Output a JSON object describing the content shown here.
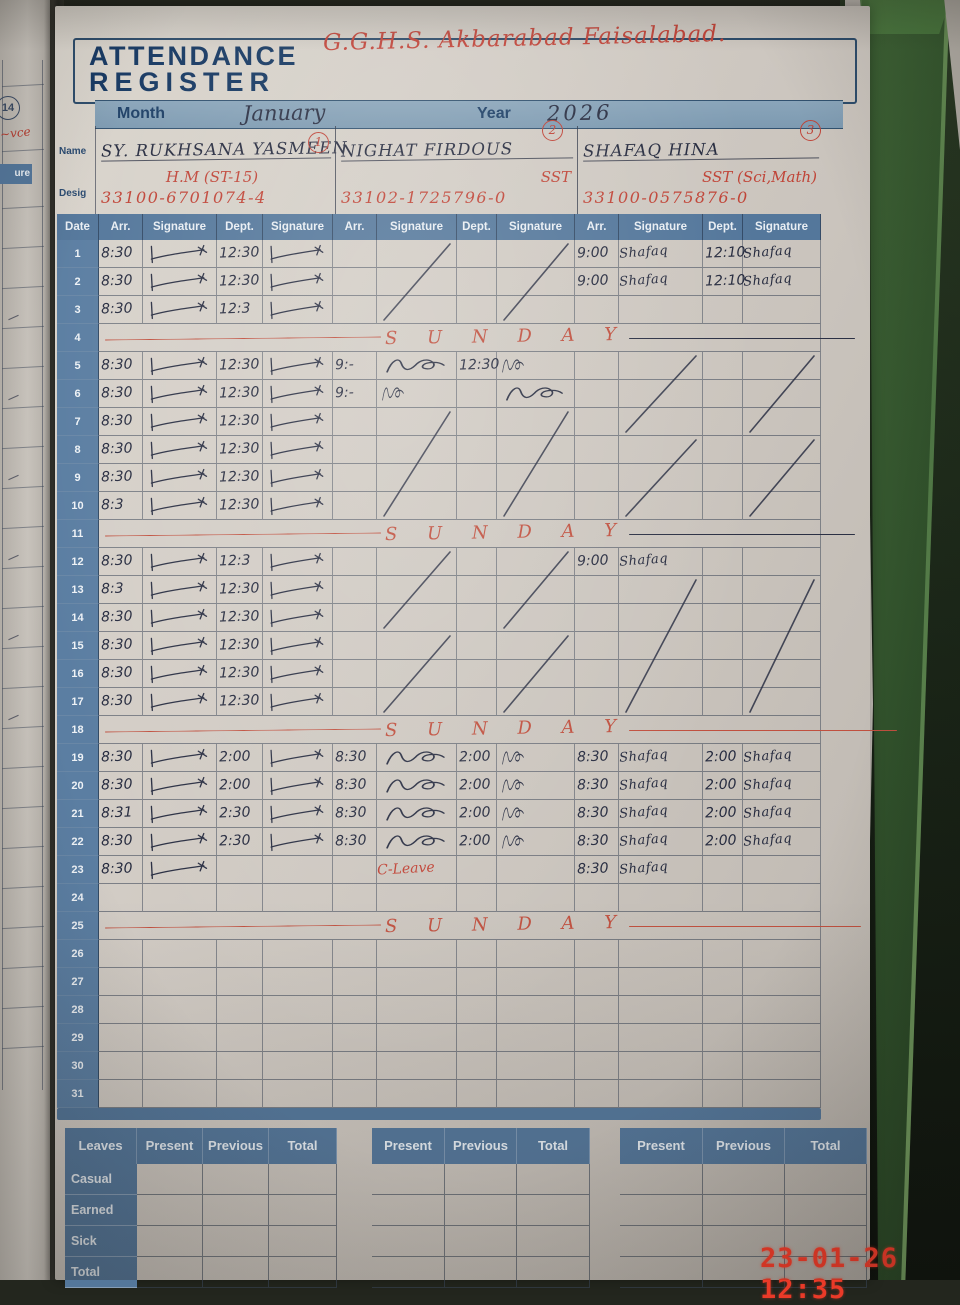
{
  "photo": {
    "timestamp": "23-01-26 12:35"
  },
  "prev_page": {
    "page_number": "14",
    "signature_fragment": "ure"
  },
  "register": {
    "title_line1": "ATTENDANCE",
    "title_line2": "REGISTER",
    "school": "G.G.H.S. Akbarabad Faisalabad.",
    "month_label": "Month",
    "month_value": "January",
    "year_label": "Year",
    "year_value": "2026",
    "name_label": "Name",
    "desig_label": "Desig",
    "teachers": [
      {
        "number": "1",
        "name": "SY. RUKHSANA YASMEEN",
        "designation": "H.M (ST-15)",
        "cnic": "33100-6701074-4"
      },
      {
        "number": "2",
        "name": "NIGHAT FIRDOUS",
        "designation": "SST",
        "cnic": "33102-1725796-0"
      },
      {
        "number": "3",
        "name": "SHAFAQ HINA",
        "designation": "SST (Sci,Math)",
        "cnic": "33100-0575876-0"
      }
    ],
    "columns": [
      "Date",
      "Arr.",
      "Signature",
      "Dept.",
      "Signature",
      "Arr.",
      "Signature",
      "Dept.",
      "Signature",
      "Arr.",
      "Signature",
      "Dept.",
      "Signature"
    ],
    "sunday_label": "S U N D A Y",
    "rows": [
      {
        "day": "1",
        "t1": [
          "8:30",
          "tick",
          "12:30",
          "tick"
        ],
        "t2": [
          "",
          "",
          "",
          ""
        ],
        "t3": [
          "9:00",
          "Shafaq",
          "12:10",
          "Shafaq"
        ]
      },
      {
        "day": "2",
        "t1": [
          "8:30",
          "tick",
          "12:30",
          "tick"
        ],
        "t2": [
          "",
          "",
          "",
          ""
        ],
        "t3": [
          "9:00",
          "Shafaq",
          "12:10",
          "Shafaq"
        ]
      },
      {
        "day": "3",
        "t1": [
          "8:30",
          "tick",
          "12:3",
          "tick"
        ],
        "t2": [
          "",
          "",
          "",
          ""
        ],
        "t3": [
          "",
          "",
          "",
          ""
        ]
      },
      {
        "day": "4",
        "sunday": {
          "right": "ink"
        }
      },
      {
        "day": "5",
        "t1": [
          "8:30",
          "tick",
          "12:30",
          "tick"
        ],
        "t2": [
          "9:-",
          "scribble",
          "12:30",
          "scribble-sm"
        ],
        "t3": [
          "",
          "",
          "",
          ""
        ]
      },
      {
        "day": "6",
        "t1": [
          "8:30",
          "tick",
          "12:30",
          "tick"
        ],
        "t2": [
          "9:-",
          "scribble-sm",
          "",
          "scribble"
        ],
        "t3": [
          "",
          "",
          "",
          ""
        ]
      },
      {
        "day": "7",
        "t1": [
          "8:30",
          "tick",
          "12:30",
          "tick"
        ],
        "t2": [
          "",
          "",
          "",
          ""
        ],
        "t3": [
          "",
          "",
          "",
          ""
        ]
      },
      {
        "day": "8",
        "t1": [
          "8:30",
          "tick",
          "12:30",
          "tick"
        ],
        "t2": [
          "",
          "",
          "",
          ""
        ],
        "t3": [
          "",
          "",
          "",
          ""
        ]
      },
      {
        "day": "9",
        "t1": [
          "8:30",
          "tick",
          "12:30",
          "tick"
        ],
        "t2": [
          "",
          "",
          "",
          ""
        ],
        "t3": [
          "",
          "",
          "",
          ""
        ]
      },
      {
        "day": "10",
        "t1": [
          "8:3",
          "tick",
          "12:30",
          "tick"
        ],
        "t2": [
          "",
          "",
          "",
          ""
        ],
        "t3": [
          "",
          "",
          "",
          ""
        ]
      },
      {
        "day": "11",
        "sunday": {
          "right": "ink"
        }
      },
      {
        "day": "12",
        "t1": [
          "8:30",
          "tick",
          "12:3",
          "tick"
        ],
        "t2": [
          "",
          "",
          "",
          ""
        ],
        "t3": [
          "9:00",
          "Shafaq",
          "",
          ""
        ]
      },
      {
        "day": "13",
        "t1": [
          "8:3",
          "tick",
          "12:30",
          "tick"
        ],
        "t2": [
          "",
          "",
          "",
          ""
        ],
        "t3": [
          "",
          "",
          "",
          ""
        ]
      },
      {
        "day": "14",
        "t1": [
          "8:30",
          "tick",
          "12:30",
          "tick"
        ],
        "t2": [
          "",
          "",
          "",
          ""
        ],
        "t3": [
          "",
          "",
          "",
          ""
        ]
      },
      {
        "day": "15",
        "t1": [
          "8:30",
          "tick",
          "12:30",
          "tick"
        ],
        "t2": [
          "",
          "",
          "",
          ""
        ],
        "t3": [
          "",
          "",
          "",
          ""
        ]
      },
      {
        "day": "16",
        "t1": [
          "8:30",
          "tick",
          "12:30",
          "tick"
        ],
        "t2": [
          "",
          "",
          "",
          ""
        ],
        "t3": [
          "",
          "",
          "",
          ""
        ]
      },
      {
        "day": "17",
        "t1": [
          "8:30",
          "tick",
          "12:30",
          "tick"
        ],
        "t2": [
          "",
          "",
          "",
          ""
        ],
        "t3": [
          "",
          "",
          "",
          ""
        ]
      },
      {
        "day": "18",
        "sunday": {
          "right": "redlong"
        }
      },
      {
        "day": "19",
        "t1": [
          "8:30",
          "tick",
          "2:00",
          "tick"
        ],
        "t2": [
          "8:30",
          "scribble",
          "2:00",
          "scribble-sm"
        ],
        "t3": [
          "8:30",
          "Shafaq",
          "2:00",
          "Shafaq"
        ]
      },
      {
        "day": "20",
        "t1": [
          "8:30",
          "tick",
          "2:00",
          "tick"
        ],
        "t2": [
          "8:30",
          "scribble",
          "2:00",
          "scribble-sm"
        ],
        "t3": [
          "8:30",
          "Shafaq",
          "2:00",
          "Shafaq"
        ]
      },
      {
        "day": "21",
        "t1": [
          "8:31",
          "tick",
          "2:30",
          "tick"
        ],
        "t2": [
          "8:30",
          "scribble",
          "2:00",
          "scribble-sm"
        ],
        "t3": [
          "8:30",
          "Shafaq",
          "2:00",
          "Shafaq"
        ]
      },
      {
        "day": "22",
        "t1": [
          "8:30",
          "tick",
          "2:30",
          "tick"
        ],
        "t2": [
          "8:30",
          "scribble",
          "2:00",
          "scribble-sm"
        ],
        "t3": [
          "8:30",
          "Shafaq",
          "2:00",
          "Shafaq"
        ]
      },
      {
        "day": "23",
        "t1": [
          "8:30",
          "tick",
          "",
          ""
        ],
        "t2": [
          "",
          "C-Leave",
          "",
          ""
        ],
        "t3": [
          "8:30",
          "Shafaq",
          "",
          ""
        ]
      },
      {
        "day": "24"
      },
      {
        "day": "25",
        "sunday": {
          "right": "red"
        }
      },
      {
        "day": "26"
      },
      {
        "day": "27"
      },
      {
        "day": "28"
      },
      {
        "day": "29"
      },
      {
        "day": "30"
      },
      {
        "day": "31"
      }
    ],
    "strikes": [
      {
        "col": 6,
        "r1": 1,
        "r2": 3
      },
      {
        "col": 8,
        "r1": 1,
        "r2": 3
      },
      {
        "col": 10,
        "r1": 5,
        "r2": 7
      },
      {
        "col": 12,
        "r1": 5,
        "r2": 7
      },
      {
        "col": 6,
        "r1": 7,
        "r2": 10
      },
      {
        "col": 8,
        "r1": 7,
        "r2": 10
      },
      {
        "col": 10,
        "r1": 8,
        "r2": 10
      },
      {
        "col": 12,
        "r1": 8,
        "r2": 10
      },
      {
        "col": 6,
        "r1": 12,
        "r2": 14
      },
      {
        "col": 8,
        "r1": 12,
        "r2": 14
      },
      {
        "col": 6,
        "r1": 15,
        "r2": 17
      },
      {
        "col": 8,
        "r1": 15,
        "r2": 17
      },
      {
        "col": 10,
        "r1": 13,
        "r2": 17
      },
      {
        "col": 12,
        "r1": 13,
        "r2": 17
      }
    ],
    "summary": {
      "leaves_label": "Leaves",
      "columns": [
        "Present",
        "Previous",
        "Total"
      ],
      "rows": [
        "Casual",
        "Earned",
        "Sick",
        "Total"
      ]
    }
  },
  "colors": {
    "header_blue": "#54779b",
    "date_blue": "#5b7ea2",
    "ink": "#2b3044",
    "red_ink": "#c04437",
    "cover_green": "#2f4f2a",
    "page": "#d0cac3",
    "timestamp_red": "#ea3a28"
  }
}
